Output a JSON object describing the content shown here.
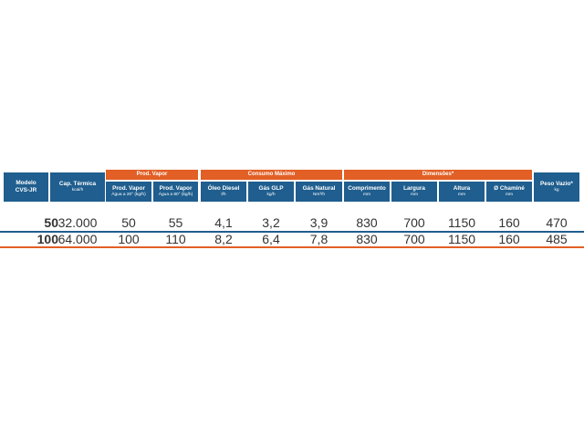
{
  "groups": {
    "prod_vapor": "Prod. Vapor",
    "consumo": "Consumo Máximo",
    "dimensoes": "Dimensões*"
  },
  "columns": [
    {
      "title": "Modelo",
      "sub": "CVS-JR"
    },
    {
      "title": "Cap. Térmica",
      "sub": "kcal/h"
    },
    {
      "title": "Prod. Vapor",
      "sub": "Água a 20° (kg/h)"
    },
    {
      "title": "Prod. Vapor",
      "sub": "Água a 80° (kg/h)"
    },
    {
      "title": "Óleo Diesel",
      "sub": "l/h"
    },
    {
      "title": "Gás GLP",
      "sub": "kg/h"
    },
    {
      "title": "Gás Natural",
      "sub": "Nm³/h"
    },
    {
      "title": "Comprimento",
      "sub": "mm"
    },
    {
      "title": "Largura",
      "sub": "mm"
    },
    {
      "title": "Altura",
      "sub": "mm"
    },
    {
      "title": "Ø Chaminé",
      "sub": "mm"
    },
    {
      "title": "Peso Vazio*",
      "sub": "kg"
    }
  ],
  "rows": [
    {
      "model": "50",
      "values": [
        "32.000",
        "50",
        "55",
        "4,1",
        "3,2",
        "3,9",
        "830",
        "700",
        "1150",
        "160",
        "470"
      ]
    },
    {
      "model": "100",
      "values": [
        "64.000",
        "100",
        "110",
        "8,2",
        "6,4",
        "7,8",
        "830",
        "700",
        "1150",
        "160",
        "485"
      ]
    }
  ],
  "colors": {
    "header_blue": "#1f5e8e",
    "accent_orange": "#e25f25"
  }
}
